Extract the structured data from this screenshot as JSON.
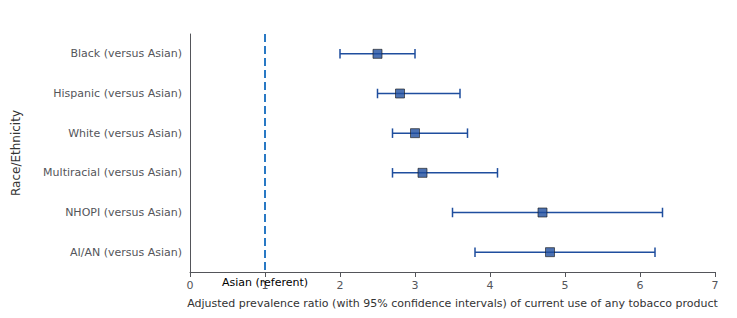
{
  "chart_data": {
    "type": "scatter",
    "orientation": "horizontal",
    "categories": [
      "Black (versus Asian)",
      "Hispanic (versus Asian)",
      "White (versus Asian)",
      "Multiracial (versus Asian)",
      "NHOPI (versus Asian)",
      "AI/AN (versus Asian)"
    ],
    "values": [
      2.5,
      2.8,
      3.0,
      3.1,
      4.7,
      4.8
    ],
    "ci_low": [
      2.0,
      2.5,
      2.7,
      2.7,
      3.5,
      3.8
    ],
    "ci_high": [
      3.0,
      3.6,
      3.7,
      4.1,
      6.3,
      6.2
    ],
    "color": "#1f4e9e",
    "marker": "square",
    "xlabel": "Adjusted prevalence ratio (with 95% confidence intervals) of current use of any tobacco product",
    "ylabel": "Race/Ethnicity",
    "xlim": [
      0,
      7
    ],
    "xticks": [
      0,
      1,
      2,
      3,
      4,
      5,
      6,
      7
    ],
    "grid": false,
    "annotations": [
      {
        "text": "Asian (referent)",
        "x": 1,
        "line_style": "dashed",
        "color": "#2979c4"
      }
    ]
  }
}
